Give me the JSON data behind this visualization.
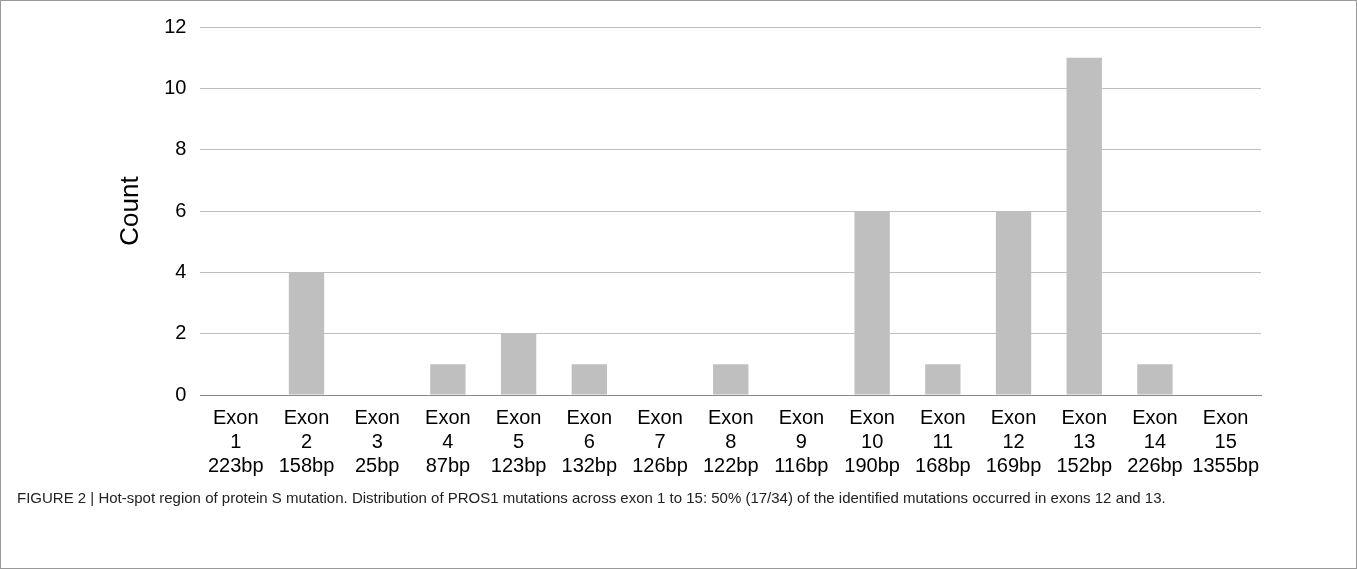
{
  "chart_data": {
    "type": "bar",
    "categories": [
      "Exon 1 223bp",
      "Exon 2 158bp",
      "Exon 3 25bp",
      "Exon 4 87bp",
      "Exon 5 123bp",
      "Exon 6 132bp",
      "Exon 7 126bp",
      "Exon 8 122bp",
      "Exon 9 116bp",
      "Exon 10 190bp",
      "Exon 11 168bp",
      "Exon 12 169bp",
      "Exon 13 152bp",
      "Exon 14 226bp",
      "Exon 15 1355bp"
    ],
    "values": [
      0,
      4,
      0,
      1,
      2,
      1,
      0,
      1,
      0,
      6,
      1,
      6,
      11,
      1,
      0
    ],
    "color": "#bfbfbf",
    "ylabel": "Count",
    "ylim": [
      0,
      12
    ],
    "yticks": [
      0,
      2,
      4,
      6,
      8,
      10,
      12
    ],
    "grid": "y",
    "legend": false,
    "annotations": [
      "FIGURE 2 | Hot-spot region of protein S mutation. Distribution of PROS1 mutations across exon 1 to 15: 50% (17/34) of the identified mutations occurred in exons 12 and 13."
    ]
  }
}
